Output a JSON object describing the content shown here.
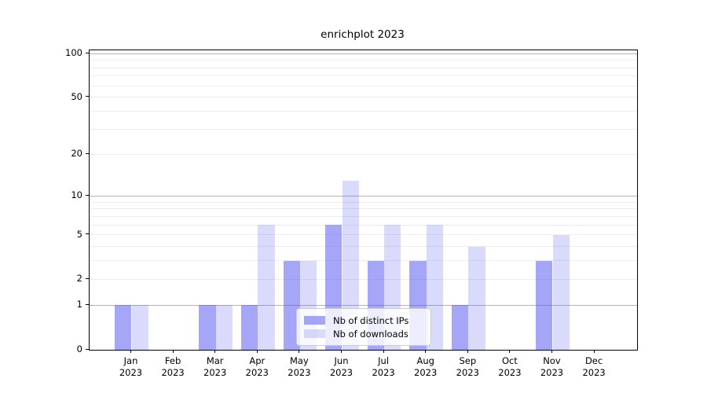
{
  "title": "enrichplot 2023",
  "chart_data": {
    "type": "bar",
    "title": "enrichplot 2023",
    "categories": [
      "Jan 2023",
      "Feb 2023",
      "Mar 2023",
      "Apr 2023",
      "May 2023",
      "Jun 2023",
      "Jul 2023",
      "Aug 2023",
      "Sep 2023",
      "Oct 2023",
      "Nov 2023",
      "Dec 2023"
    ],
    "series": [
      {
        "name": "Nb of distinct IPs",
        "values": [
          1,
          0,
          1,
          1,
          3,
          6,
          3,
          3,
          1,
          0,
          3,
          0
        ]
      },
      {
        "name": "Nb of downloads",
        "values": [
          1,
          0,
          1,
          6,
          3,
          13,
          6,
          6,
          4,
          0,
          5,
          0
        ]
      }
    ],
    "y_ticks": [
      0,
      1,
      2,
      5,
      10,
      20,
      50,
      100
    ],
    "y_scale": "log1p",
    "ylim": [
      0,
      100
    ],
    "grid": true,
    "legend_position": "lower center"
  },
  "colors": {
    "bar_distinct_ips": "rgba(85,85,242,0.52)",
    "bar_downloads": "rgba(85,85,242,0.22)",
    "grid_major": "#b3b3b3",
    "grid_minor": "#ededed",
    "spine": "#000000",
    "background": "#ffffff"
  }
}
